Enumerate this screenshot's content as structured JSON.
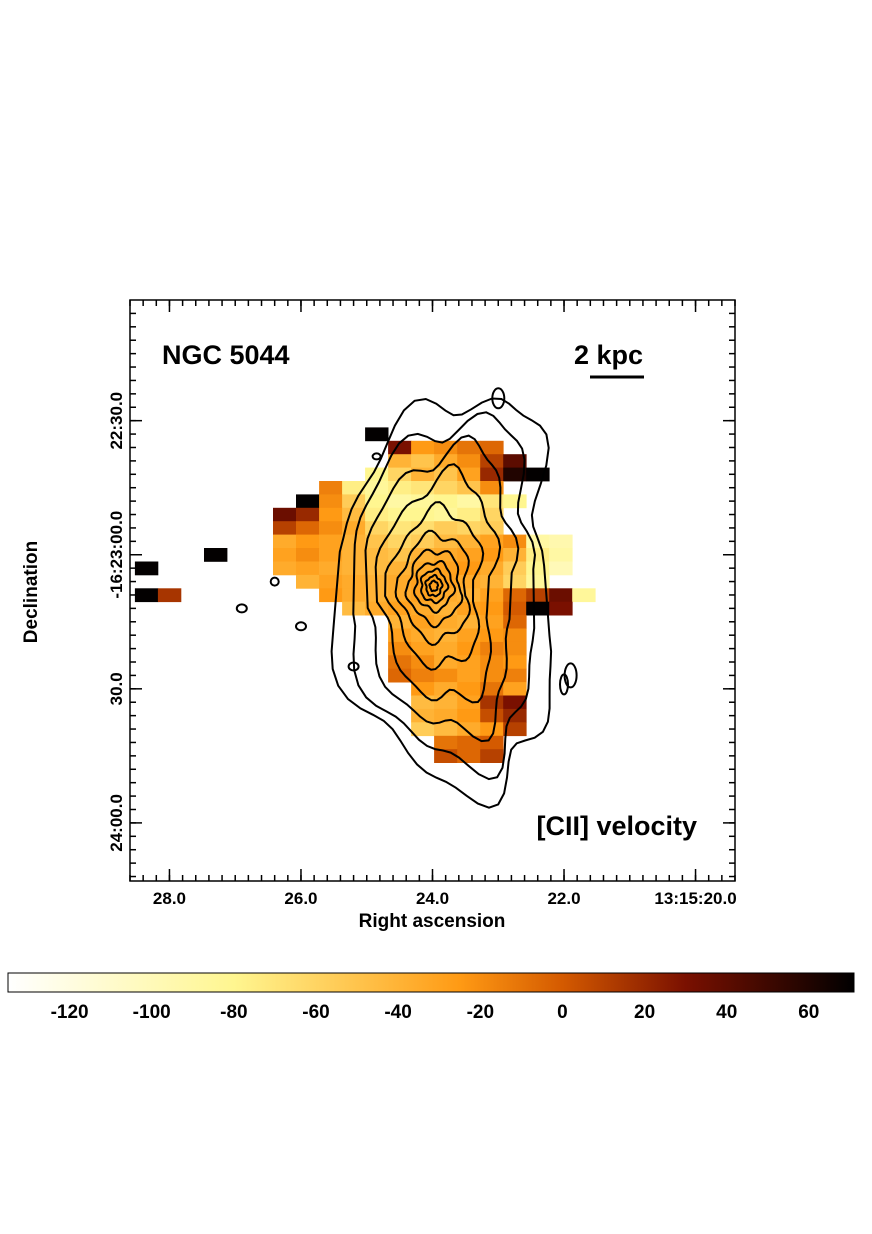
{
  "chart_data": {
    "type": "heatmap",
    "title": "NGC 5044",
    "annotation": "[CII] velocity",
    "scale_bar_label": "2 kpc",
    "xlabel": "Right ascension",
    "ylabel": "Declination",
    "x_ticks": [
      {
        "value": 28.0,
        "label": "28.0"
      },
      {
        "value": 26.0,
        "label": "26.0"
      },
      {
        "value": 24.0,
        "label": "24.0"
      },
      {
        "value": 22.0,
        "label": "22.0"
      },
      {
        "value": 20.0,
        "label": "13:15:20.0"
      }
    ],
    "xlim": [
      28.6,
      19.4
    ],
    "y_ticks": [
      {
        "value": 30,
        "label": "22:30.0"
      },
      {
        "value": 0,
        "label": "-16:23:00.0"
      },
      {
        "value": -30,
        "label": "30.0"
      },
      {
        "value": -60,
        "label": "24:00.0"
      }
    ],
    "ylim": [
      -73,
      57
    ],
    "colorbar": {
      "min": -135,
      "max": 71,
      "ticks": [
        -120,
        -100,
        -80,
        -60,
        -40,
        -20,
        0,
        20,
        40,
        60
      ],
      "tick_labels": [
        "-120",
        "-100",
        "-80",
        "-60",
        "-40",
        "-20",
        "0",
        "20",
        "40",
        "60"
      ],
      "colormap": [
        "#ffffff",
        "#fff690",
        "#ff9a14",
        "#d45a00",
        "#7a1000",
        "#000000"
      ],
      "stops": [
        -135,
        -80,
        -25,
        0,
        30,
        71
      ]
    },
    "velocity_map_description": "pixelated [CII] line-of-sight velocity map (km/s) with contours of emission overlaid",
    "pixels": [
      {
        "ra": 24.85,
        "dec": 27,
        "v": 70
      },
      {
        "ra": 24.5,
        "dec": 24,
        "v": 30
      },
      {
        "ra": 24.15,
        "dec": 24,
        "v": -25
      },
      {
        "ra": 23.8,
        "dec": 24,
        "v": -20
      },
      {
        "ra": 23.45,
        "dec": 24,
        "v": -10
      },
      {
        "ra": 23.1,
        "dec": 24,
        "v": -5
      },
      {
        "ra": 24.5,
        "dec": 21,
        "v": -40
      },
      {
        "ra": 24.15,
        "dec": 21,
        "v": -50
      },
      {
        "ra": 23.8,
        "dec": 21,
        "v": -35
      },
      {
        "ra": 23.45,
        "dec": 21,
        "v": -20
      },
      {
        "ra": 23.1,
        "dec": 21,
        "v": 10
      },
      {
        "ra": 22.75,
        "dec": 21,
        "v": 40
      },
      {
        "ra": 24.85,
        "dec": 18,
        "v": -80
      },
      {
        "ra": 24.5,
        "dec": 18,
        "v": -60
      },
      {
        "ra": 24.15,
        "dec": 18,
        "v": -40
      },
      {
        "ra": 23.8,
        "dec": 18,
        "v": -50
      },
      {
        "ra": 23.45,
        "dec": 18,
        "v": -30
      },
      {
        "ra": 23.1,
        "dec": 18,
        "v": 20
      },
      {
        "ra": 22.75,
        "dec": 18,
        "v": 60
      },
      {
        "ra": 22.4,
        "dec": 18,
        "v": 70
      },
      {
        "ra": 25.55,
        "dec": 15,
        "v": -15
      },
      {
        "ra": 25.2,
        "dec": 15,
        "v": -75
      },
      {
        "ra": 24.85,
        "dec": 15,
        "v": -85
      },
      {
        "ra": 24.5,
        "dec": 15,
        "v": -75
      },
      {
        "ra": 24.15,
        "dec": 15,
        "v": -70
      },
      {
        "ra": 23.8,
        "dec": 15,
        "v": -60
      },
      {
        "ra": 23.45,
        "dec": 15,
        "v": -50
      },
      {
        "ra": 23.1,
        "dec": 15,
        "v": -20
      },
      {
        "ra": 25.9,
        "dec": 12,
        "v": 70
      },
      {
        "ra": 25.55,
        "dec": 12,
        "v": -20
      },
      {
        "ra": 25.2,
        "dec": 12,
        "v": -55
      },
      {
        "ra": 24.85,
        "dec": 12,
        "v": -80
      },
      {
        "ra": 24.5,
        "dec": 12,
        "v": -90
      },
      {
        "ra": 24.15,
        "dec": 12,
        "v": -85
      },
      {
        "ra": 23.8,
        "dec": 12,
        "v": -80
      },
      {
        "ra": 23.45,
        "dec": 12,
        "v": -90
      },
      {
        "ra": 23.1,
        "dec": 12,
        "v": -70
      },
      {
        "ra": 22.75,
        "dec": 12,
        "v": -80
      },
      {
        "ra": 26.25,
        "dec": 9,
        "v": 35
      },
      {
        "ra": 25.9,
        "dec": 9,
        "v": 20
      },
      {
        "ra": 25.55,
        "dec": 9,
        "v": -25
      },
      {
        "ra": 25.2,
        "dec": 9,
        "v": -45
      },
      {
        "ra": 24.85,
        "dec": 9,
        "v": -75
      },
      {
        "ra": 24.5,
        "dec": 9,
        "v": -80
      },
      {
        "ra": 24.15,
        "dec": 9,
        "v": -80
      },
      {
        "ra": 23.8,
        "dec": 9,
        "v": -85
      },
      {
        "ra": 23.45,
        "dec": 9,
        "v": -75
      },
      {
        "ra": 23.1,
        "dec": 9,
        "v": -60
      },
      {
        "ra": 26.25,
        "dec": 6,
        "v": 10
      },
      {
        "ra": 25.9,
        "dec": 6,
        "v": -5
      },
      {
        "ra": 25.55,
        "dec": 6,
        "v": -20
      },
      {
        "ra": 25.2,
        "dec": 6,
        "v": -35
      },
      {
        "ra": 24.85,
        "dec": 6,
        "v": -60
      },
      {
        "ra": 24.5,
        "dec": 6,
        "v": -70
      },
      {
        "ra": 24.15,
        "dec": 6,
        "v": -65
      },
      {
        "ra": 23.8,
        "dec": 6,
        "v": -55
      },
      {
        "ra": 23.45,
        "dec": 6,
        "v": -60
      },
      {
        "ra": 23.1,
        "dec": 6,
        "v": -55
      },
      {
        "ra": 26.25,
        "dec": 3,
        "v": -35
      },
      {
        "ra": 25.9,
        "dec": 3,
        "v": -25
      },
      {
        "ra": 25.55,
        "dec": 3,
        "v": -30
      },
      {
        "ra": 25.2,
        "dec": 3,
        "v": -40
      },
      {
        "ra": 24.85,
        "dec": 3,
        "v": -50
      },
      {
        "ra": 24.5,
        "dec": 3,
        "v": -60
      },
      {
        "ra": 24.15,
        "dec": 3,
        "v": -55
      },
      {
        "ra": 23.8,
        "dec": 3,
        "v": -45
      },
      {
        "ra": 23.45,
        "dec": 3,
        "v": -40
      },
      {
        "ra": 23.1,
        "dec": 3,
        "v": -30
      },
      {
        "ra": 22.75,
        "dec": 3,
        "v": -20
      },
      {
        "ra": 22.4,
        "dec": 3,
        "v": -90
      },
      {
        "ra": 22.05,
        "dec": 3,
        "v": -95
      },
      {
        "ra": 27.3,
        "dec": 0,
        "v": 70
      },
      {
        "ra": 26.25,
        "dec": 0,
        "v": -30
      },
      {
        "ra": 25.9,
        "dec": 0,
        "v": -20
      },
      {
        "ra": 25.55,
        "dec": 0,
        "v": -30
      },
      {
        "ra": 25.2,
        "dec": 0,
        "v": -40
      },
      {
        "ra": 24.85,
        "dec": 0,
        "v": -45
      },
      {
        "ra": 24.5,
        "dec": 0,
        "v": -50
      },
      {
        "ra": 24.15,
        "dec": 0,
        "v": -40
      },
      {
        "ra": 23.8,
        "dec": 0,
        "v": -35
      },
      {
        "ra": 23.45,
        "dec": 0,
        "v": -30
      },
      {
        "ra": 23.1,
        "dec": 0,
        "v": -25
      },
      {
        "ra": 22.75,
        "dec": 0,
        "v": -40
      },
      {
        "ra": 22.4,
        "dec": 0,
        "v": -75
      },
      {
        "ra": 22.05,
        "dec": 0,
        "v": -90
      },
      {
        "ra": 28.35,
        "dec": -3,
        "v": 70
      },
      {
        "ra": 26.25,
        "dec": -3,
        "v": -35
      },
      {
        "ra": 25.9,
        "dec": -3,
        "v": -30
      },
      {
        "ra": 25.55,
        "dec": -3,
        "v": -35
      },
      {
        "ra": 25.2,
        "dec": -3,
        "v": -40
      },
      {
        "ra": 24.85,
        "dec": -3,
        "v": -45
      },
      {
        "ra": 24.5,
        "dec": -3,
        "v": -40
      },
      {
        "ra": 24.15,
        "dec": -3,
        "v": -35
      },
      {
        "ra": 23.8,
        "dec": -3,
        "v": -30
      },
      {
        "ra": 23.45,
        "dec": -3,
        "v": -25
      },
      {
        "ra": 23.1,
        "dec": -3,
        "v": -35
      },
      {
        "ra": 22.75,
        "dec": -3,
        "v": -55
      },
      {
        "ra": 22.4,
        "dec": -3,
        "v": -80
      },
      {
        "ra": 22.05,
        "dec": -3,
        "v": -100
      },
      {
        "ra": 25.9,
        "dec": -6,
        "v": -40
      },
      {
        "ra": 25.55,
        "dec": -6,
        "v": -30
      },
      {
        "ra": 25.2,
        "dec": -6,
        "v": -35
      },
      {
        "ra": 24.85,
        "dec": -6,
        "v": -40
      },
      {
        "ra": 24.5,
        "dec": -6,
        "v": -35
      },
      {
        "ra": 24.15,
        "dec": -6,
        "v": -30
      },
      {
        "ra": 23.8,
        "dec": -6,
        "v": -30
      },
      {
        "ra": 23.45,
        "dec": -6,
        "v": -35
      },
      {
        "ra": 23.1,
        "dec": -6,
        "v": -40
      },
      {
        "ra": 22.75,
        "dec": -6,
        "v": -60
      },
      {
        "ra": 22.4,
        "dec": -6,
        "v": -85
      },
      {
        "ra": 28.35,
        "dec": -9,
        "v": 70
      },
      {
        "ra": 28.0,
        "dec": -9,
        "v": 15
      },
      {
        "ra": 25.55,
        "dec": -9,
        "v": -25
      },
      {
        "ra": 25.2,
        "dec": -9,
        "v": -35
      },
      {
        "ra": 24.85,
        "dec": -9,
        "v": -40
      },
      {
        "ra": 24.5,
        "dec": -9,
        "v": -35
      },
      {
        "ra": 24.15,
        "dec": -9,
        "v": -30
      },
      {
        "ra": 23.8,
        "dec": -9,
        "v": -35
      },
      {
        "ra": 23.45,
        "dec": -9,
        "v": -40
      },
      {
        "ra": 23.1,
        "dec": -9,
        "v": -30
      },
      {
        "ra": 22.75,
        "dec": -9,
        "v": -5
      },
      {
        "ra": 22.4,
        "dec": -9,
        "v": 10
      },
      {
        "ra": 22.05,
        "dec": -9,
        "v": 35
      },
      {
        "ra": 21.7,
        "dec": -9,
        "v": -85
      },
      {
        "ra": 25.2,
        "dec": -12,
        "v": -45
      },
      {
        "ra": 24.85,
        "dec": -12,
        "v": -35
      },
      {
        "ra": 24.5,
        "dec": -12,
        "v": -30
      },
      {
        "ra": 24.15,
        "dec": -12,
        "v": -35
      },
      {
        "ra": 23.8,
        "dec": -12,
        "v": -40
      },
      {
        "ra": 23.45,
        "dec": -12,
        "v": -30
      },
      {
        "ra": 23.1,
        "dec": -12,
        "v": -25
      },
      {
        "ra": 22.75,
        "dec": -12,
        "v": 0
      },
      {
        "ra": 22.4,
        "dec": -12,
        "v": 70
      },
      {
        "ra": 22.05,
        "dec": -12,
        "v": 30
      },
      {
        "ra": 24.5,
        "dec": -15,
        "v": -40
      },
      {
        "ra": 24.15,
        "dec": -15,
        "v": -30
      },
      {
        "ra": 23.8,
        "dec": -15,
        "v": -35
      },
      {
        "ra": 23.45,
        "dec": -15,
        "v": -40
      },
      {
        "ra": 23.1,
        "dec": -15,
        "v": -30
      },
      {
        "ra": 22.75,
        "dec": -15,
        "v": -5
      },
      {
        "ra": 24.5,
        "dec": -18,
        "v": -30
      },
      {
        "ra": 24.15,
        "dec": -18,
        "v": -35
      },
      {
        "ra": 23.8,
        "dec": -18,
        "v": -40
      },
      {
        "ra": 23.45,
        "dec": -18,
        "v": -30
      },
      {
        "ra": 23.1,
        "dec": -18,
        "v": -25
      },
      {
        "ra": 22.75,
        "dec": -18,
        "v": -20
      },
      {
        "ra": 24.5,
        "dec": -21,
        "v": -20
      },
      {
        "ra": 24.15,
        "dec": -21,
        "v": -30
      },
      {
        "ra": 23.8,
        "dec": -21,
        "v": -35
      },
      {
        "ra": 23.45,
        "dec": -21,
        "v": -25
      },
      {
        "ra": 23.1,
        "dec": -21,
        "v": -15
      },
      {
        "ra": 22.75,
        "dec": -21,
        "v": -20
      },
      {
        "ra": 24.5,
        "dec": -24,
        "v": -10
      },
      {
        "ra": 24.15,
        "dec": -24,
        "v": -20
      },
      {
        "ra": 23.8,
        "dec": -24,
        "v": -35
      },
      {
        "ra": 23.45,
        "dec": -24,
        "v": -30
      },
      {
        "ra": 23.1,
        "dec": -24,
        "v": -20
      },
      {
        "ra": 22.75,
        "dec": -24,
        "v": -25
      },
      {
        "ra": 24.5,
        "dec": -27,
        "v": -5
      },
      {
        "ra": 24.15,
        "dec": -27,
        "v": -15
      },
      {
        "ra": 23.8,
        "dec": -27,
        "v": -20
      },
      {
        "ra": 23.45,
        "dec": -27,
        "v": -30
      },
      {
        "ra": 23.1,
        "dec": -27,
        "v": -20
      },
      {
        "ra": 22.75,
        "dec": -27,
        "v": -15
      },
      {
        "ra": 24.15,
        "dec": -30,
        "v": -25
      },
      {
        "ra": 23.8,
        "dec": -30,
        "v": -35
      },
      {
        "ra": 23.45,
        "dec": -30,
        "v": -25
      },
      {
        "ra": 23.1,
        "dec": -30,
        "v": -10
      },
      {
        "ra": 22.75,
        "dec": -30,
        "v": -30
      },
      {
        "ra": 24.15,
        "dec": -33,
        "v": -45
      },
      {
        "ra": 23.8,
        "dec": -33,
        "v": -40
      },
      {
        "ra": 23.45,
        "dec": -33,
        "v": -30
      },
      {
        "ra": 23.1,
        "dec": -33,
        "v": 15
      },
      {
        "ra": 22.75,
        "dec": -33,
        "v": 30
      },
      {
        "ra": 24.15,
        "dec": -36,
        "v": -40
      },
      {
        "ra": 23.8,
        "dec": -36,
        "v": -35
      },
      {
        "ra": 23.45,
        "dec": -36,
        "v": -25
      },
      {
        "ra": 23.1,
        "dec": -36,
        "v": 5
      },
      {
        "ra": 22.75,
        "dec": -36,
        "v": 20
      },
      {
        "ra": 24.15,
        "dec": -39,
        "v": -55
      },
      {
        "ra": 23.8,
        "dec": -39,
        "v": -45
      },
      {
        "ra": 23.45,
        "dec": -39,
        "v": -35
      },
      {
        "ra": 23.1,
        "dec": -39,
        "v": -25
      },
      {
        "ra": 22.75,
        "dec": -39,
        "v": 10
      },
      {
        "ra": 23.8,
        "dec": -42,
        "v": -10
      },
      {
        "ra": 23.45,
        "dec": -42,
        "v": -5
      },
      {
        "ra": 23.1,
        "dec": -42,
        "v": 0
      },
      {
        "ra": 23.8,
        "dec": -45,
        "v": 5
      },
      {
        "ra": 23.45,
        "dec": -45,
        "v": -5
      },
      {
        "ra": 23.1,
        "dec": -45,
        "v": 10
      }
    ]
  }
}
